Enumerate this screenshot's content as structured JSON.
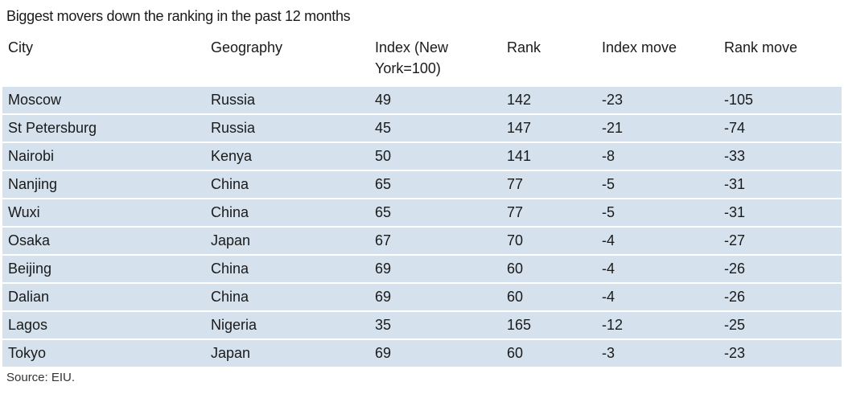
{
  "title": "Biggest movers down the ranking in the past 12 months",
  "table": {
    "header": [
      "City",
      "Geography",
      "Index (New York=100)",
      "Rank",
      "Index move",
      "Rank move"
    ],
    "rows": [
      [
        "Moscow",
        "Russia",
        49,
        142,
        -23,
        -105
      ],
      [
        "St Petersburg",
        "Russia",
        45,
        147,
        -21,
        -74
      ],
      [
        "Nairobi",
        "Kenya",
        50,
        141,
        -8,
        -33
      ],
      [
        "Nanjing",
        "China",
        65,
        77,
        -5,
        -31
      ],
      [
        "Wuxi",
        "China",
        65,
        77,
        -5,
        -31
      ],
      [
        "Osaka",
        "Japan",
        67,
        70,
        -4,
        -27
      ],
      [
        "Beijing",
        "China",
        69,
        60,
        -4,
        -26
      ],
      [
        "Dalian",
        "China",
        69,
        60,
        -4,
        -26
      ],
      [
        "Lagos",
        "Nigeria",
        35,
        165,
        -12,
        -25
      ],
      [
        "Tokyo",
        "Japan",
        69,
        60,
        -3,
        -23
      ]
    ]
  },
  "source": "Source: EIU."
}
